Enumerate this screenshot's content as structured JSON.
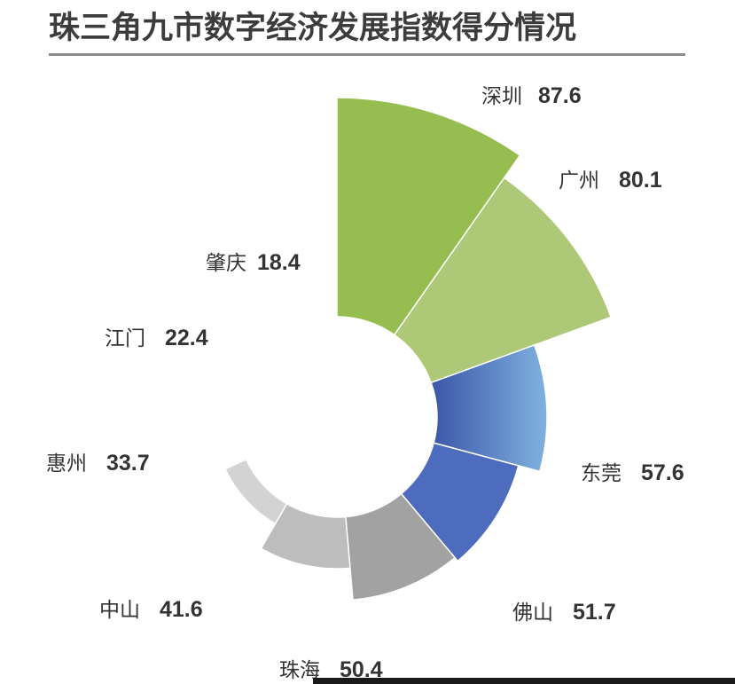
{
  "page": {
    "title": "珠三角九市数字经济发展指数得分情况"
  },
  "chart_data": {
    "type": "pie",
    "variant": "nightingale-rose-donut",
    "title": "珠三角九市数字经济发展指数得分情况",
    "categories": [
      "深圳",
      "广州",
      "东莞",
      "佛山",
      "珠海",
      "中山",
      "惠州",
      "江门",
      "肇庆"
    ],
    "values": [
      87.6,
      80.1,
      57.6,
      51.7,
      50.4,
      41.6,
      33.7,
      22.4,
      18.4
    ],
    "value_labels": [
      "87.6",
      "80.1",
      "57.6",
      "51.7",
      "50.4",
      "41.6",
      "33.7",
      "22.4",
      "18.4"
    ],
    "colors": [
      "#96bd50",
      "#adc876",
      "gradient:#3c55a8-#7fb2df",
      "#4d6cbd",
      "#a2a2a2",
      "#bdbdbd",
      "#d3d3d3",
      "#e2e2e2",
      "#ececec"
    ],
    "legend": "none",
    "grid": false
  }
}
